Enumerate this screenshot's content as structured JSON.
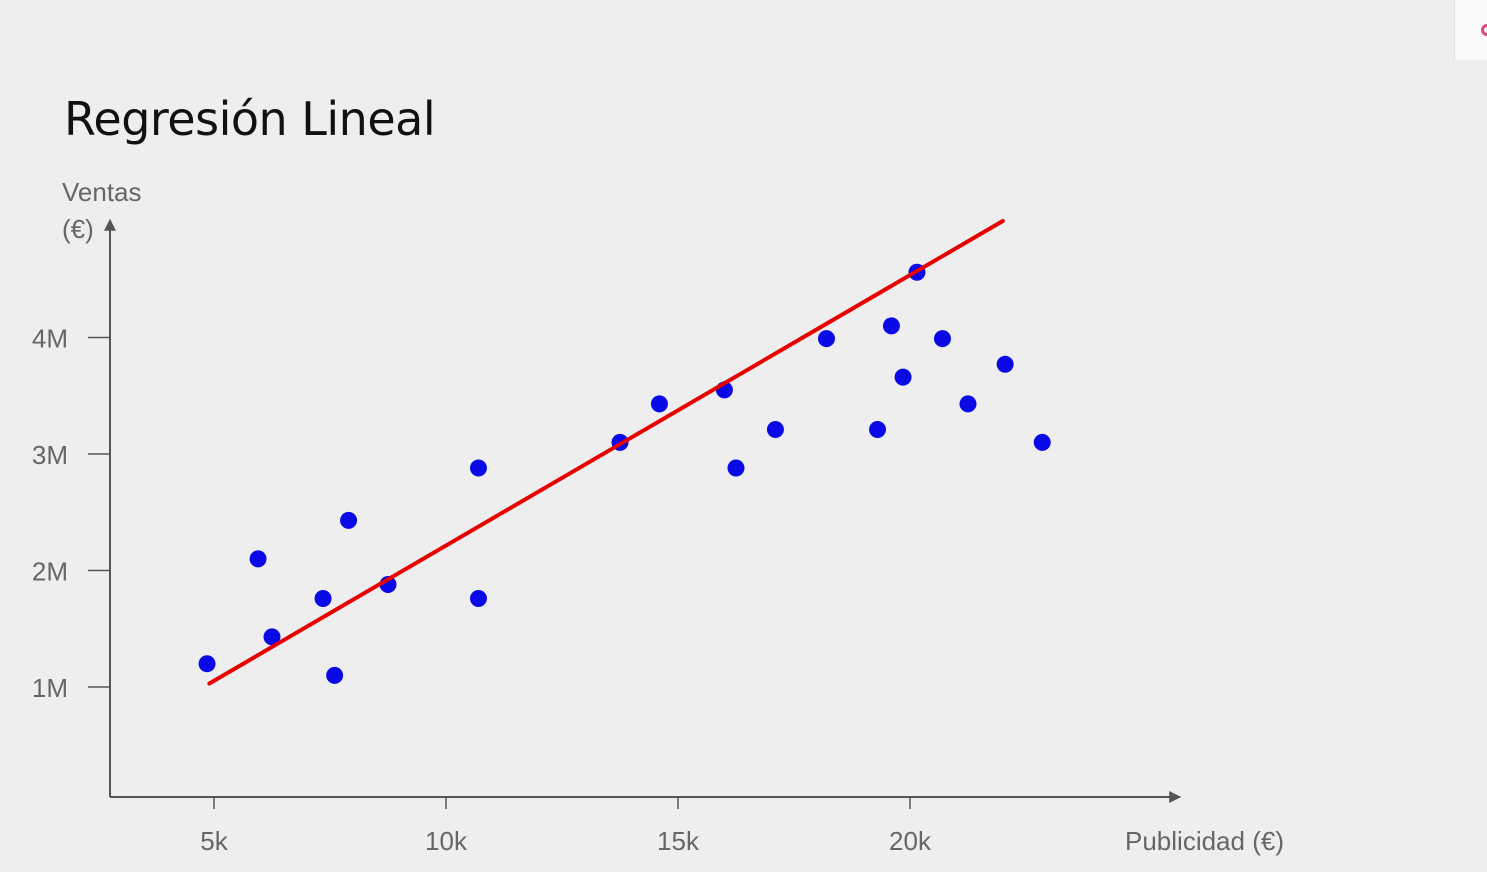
{
  "title": "Regresión Lineal",
  "chart_data": {
    "type": "scatter",
    "title": "Regresión Lineal",
    "ylabel_lines": [
      "Ventas",
      "(€)"
    ],
    "xlabel": "Publicidad (€)",
    "x_ticks": [
      {
        "value": 5000,
        "label": "5k"
      },
      {
        "value": 10000,
        "label": "10k"
      },
      {
        "value": 15000,
        "label": "15k"
      },
      {
        "value": 20000,
        "label": "20k"
      }
    ],
    "y_ticks": [
      {
        "value": 1000000,
        "label": "1M"
      },
      {
        "value": 2000000,
        "label": "2M"
      },
      {
        "value": 3000000,
        "label": "3M"
      },
      {
        "value": 4000000,
        "label": "4M"
      }
    ],
    "xlim": [
      2800,
      27500
    ],
    "ylim": [
      50000,
      5000000
    ],
    "grid": false,
    "legend": false,
    "colors": {
      "points": "#0a0ae6",
      "line": "#e60000",
      "axis": "#555555"
    },
    "points": [
      {
        "x": 4850,
        "y": 1200000
      },
      {
        "x": 5950,
        "y": 2100000
      },
      {
        "x": 6250,
        "y": 1430000
      },
      {
        "x": 7350,
        "y": 1760000
      },
      {
        "x": 7600,
        "y": 1100000
      },
      {
        "x": 7900,
        "y": 2430000
      },
      {
        "x": 8750,
        "y": 1880000
      },
      {
        "x": 10700,
        "y": 2880000
      },
      {
        "x": 10700,
        "y": 1760000
      },
      {
        "x": 13750,
        "y": 3100000
      },
      {
        "x": 14600,
        "y": 3430000
      },
      {
        "x": 16000,
        "y": 3550000
      },
      {
        "x": 16250,
        "y": 2880000
      },
      {
        "x": 17100,
        "y": 3210000
      },
      {
        "x": 18200,
        "y": 3990000
      },
      {
        "x": 19300,
        "y": 3210000
      },
      {
        "x": 19600,
        "y": 4100000
      },
      {
        "x": 19850,
        "y": 3660000
      },
      {
        "x": 20150,
        "y": 4560000
      },
      {
        "x": 20700,
        "y": 3990000
      },
      {
        "x": 21250,
        "y": 3430000
      },
      {
        "x": 22050,
        "y": 3770000
      },
      {
        "x": 22850,
        "y": 3100000
      }
    ],
    "regression_line": {
      "x": [
        4900,
        22000
      ],
      "y": [
        1030000,
        5000000
      ]
    }
  }
}
